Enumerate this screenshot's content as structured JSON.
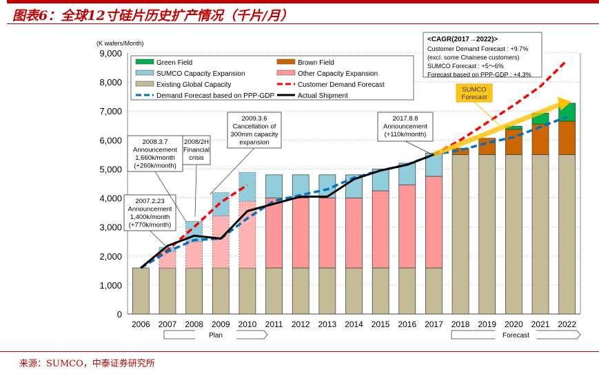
{
  "title": "图表6：全球12寸硅片历史扩产情况（千片/月）",
  "source": "来源：SUMCO，中泰证券研究所",
  "chart_data": {
    "type": "bar",
    "ylabel": "(K wafers/Month)",
    "ylim": [
      0,
      9000
    ],
    "yticks": [
      "0",
      "1,000",
      "2,000",
      "3,000",
      "4,000",
      "5,000",
      "6,000",
      "7,000",
      "8,000",
      "9,000"
    ],
    "categories": [
      "2006",
      "2007",
      "2008",
      "2009",
      "2010",
      "2011",
      "2012",
      "2013",
      "2014",
      "2015",
      "2016",
      "2017",
      "2018",
      "2019",
      "2020",
      "2021",
      "2022"
    ],
    "plan_years": [
      "2007",
      "2008",
      "2009",
      "2010"
    ],
    "stacked_series": [
      {
        "name": "Existing Global Capacity",
        "color": "#c4bc96",
        "values": [
          1590,
          1590,
          1590,
          1590,
          1590,
          1590,
          1590,
          1590,
          1590,
          1590,
          1590,
          1590,
          5500,
          5500,
          5500,
          5500,
          5500
        ]
      },
      {
        "name": "Other Capacity Expansion",
        "color": "#ff9999",
        "values": [
          0,
          570,
          900,
          1800,
          2300,
          2410,
          2410,
          2410,
          2410,
          2660,
          2860,
          3160,
          0,
          0,
          0,
          0,
          0
        ]
      },
      {
        "name": "SUMCO Capacity Expansion",
        "color": "#92cddc",
        "values": [
          0,
          140,
          710,
          800,
          1000,
          800,
          800,
          800,
          800,
          750,
          750,
          800,
          0,
          0,
          0,
          0,
          0
        ]
      },
      {
        "name": "Brown Field",
        "color": "#cc6600",
        "values": [
          0,
          0,
          0,
          0,
          0,
          0,
          0,
          0,
          0,
          0,
          0,
          0,
          220,
          560,
          870,
          1050,
          1150
        ]
      },
      {
        "name": "Green Field",
        "color": "#00b050",
        "values": [
          0,
          0,
          0,
          0,
          0,
          0,
          0,
          0,
          0,
          0,
          0,
          0,
          0,
          0,
          110,
          380,
          620
        ]
      }
    ],
    "line_series": [
      {
        "name": "Customer Demand Forecast",
        "color": "#ff0000",
        "style": "dashed",
        "values": [
          1590,
          2200,
          3000,
          3850,
          4450,
          null,
          null,
          null,
          null,
          null,
          null,
          5500,
          6000,
          6600,
          7200,
          7850,
          8750
        ]
      },
      {
        "name": "Demand Forecast based on PPP-GDP",
        "color": "#0070c0",
        "style": "dashed",
        "values": [
          1590,
          2150,
          2550,
          2600,
          3300,
          3900,
          4100,
          4300,
          4700,
          4950,
          5150,
          5500,
          5650,
          5900,
          6100,
          6450,
          6800
        ]
      },
      {
        "name": "Actual Shipment",
        "color": "#000000",
        "style": "solid",
        "values": [
          1590,
          2350,
          2700,
          2600,
          3550,
          3800,
          4050,
          4050,
          4650,
          4950,
          5150,
          5500,
          null,
          null,
          null,
          null,
          null
        ]
      }
    ],
    "sumco_forecast_arrow": {
      "label": "SUMCO Forecast",
      "color": "#ffc000",
      "from": [
        "2017",
        5500
      ],
      "to": [
        "2022",
        7300
      ]
    },
    "legend": {
      "placement": "top-left",
      "entries": [
        "Green Field",
        "Brown Field",
        "SUMCO Capacity Expansion",
        "Other Capacity Expansion",
        "Existing Global Capacity",
        "Customer Demand Forecast",
        "Demand Forecast based on PPP-GDP",
        "Actual Shipment"
      ]
    },
    "grid": true,
    "period_labels": {
      "plan": "Plan",
      "forecast": "Forecast"
    },
    "annotations": [
      {
        "lines": [
          "2007.2.23",
          "Announcement",
          "1,400k/month",
          "(+770k/month)"
        ]
      },
      {
        "lines": [
          "2008.3.7",
          "Announcement",
          "1,660k/month",
          "(+260k/month)"
        ]
      },
      {
        "lines": [
          "2008/2H",
          "Financial",
          "crisis"
        ]
      },
      {
        "lines": [
          "2009.3.6",
          "Cancellation of",
          "300mm capacity",
          "expansion"
        ]
      },
      {
        "lines": [
          "2017.8.8",
          "Announcement",
          "(+110k/month)"
        ]
      }
    ],
    "cagr_box": {
      "title": "<CAGR(2017→2022)>",
      "lines": [
        "Customer Demand Forecast  : +9.7%",
        "(excl. some Chainese customers)",
        "SUMCO Forecast              : +5～6%",
        "Forecast based on PPP-GDP : +4.3%"
      ]
    }
  }
}
